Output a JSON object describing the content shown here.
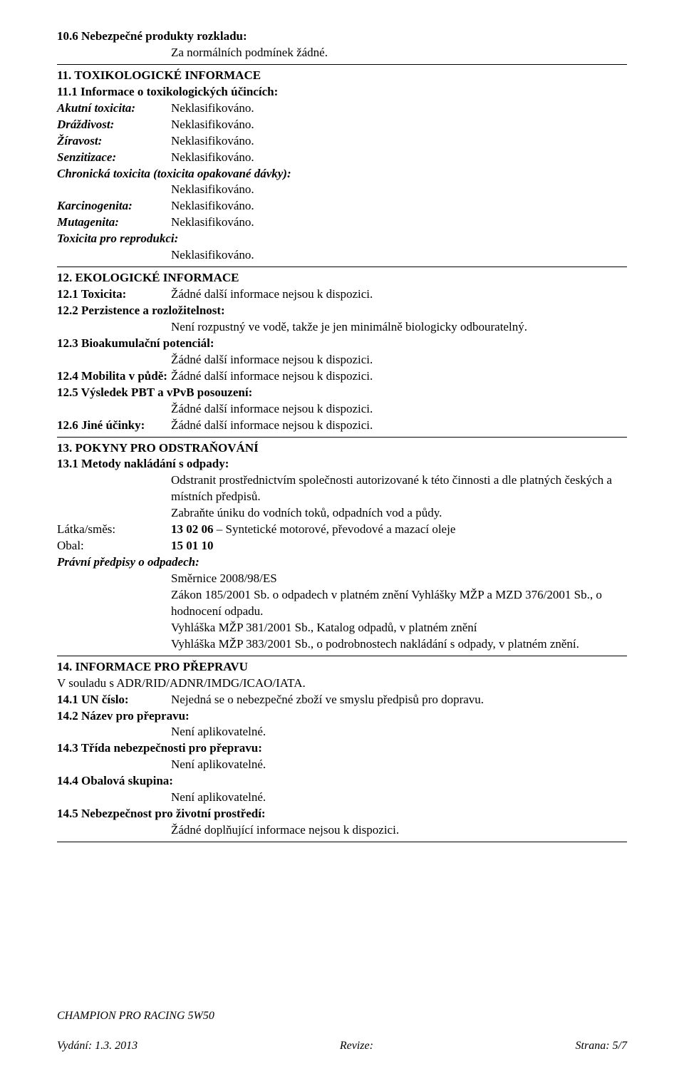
{
  "s10_6_title": "10.6 Nebezpečné produkty rozkladu:",
  "s10_6_text": "Za normálních podmínek žádné.",
  "s11_title": "11. TOXIKOLOGICKÉ INFORMACE",
  "s11_1_title": "11.1 Informace o toxikologických účincích:",
  "akutni_label": "Akutní toxicita:",
  "akutni_val": "Neklasifikováno.",
  "drazdivost_label": "Dráždivost:",
  "drazdivost_val": "Neklasifikováno.",
  "ziravost_label": "Žíravost:",
  "ziravost_val": "Neklasifikováno.",
  "senzitizace_label": "Senzitizace:",
  "senzitizace_val": "Neklasifikováno.",
  "chronic_label": "Chronická toxicita (toxicita opakované dávky):",
  "chronic_val": "Neklasifikováno.",
  "karcinogen_label": "Karcinogenita:",
  "karcinogen_val": "Neklasifikováno.",
  "mutagen_label": "Mutagenita:",
  "mutagen_val": "Neklasifikováno.",
  "toxrepro_label": "Toxicita pro reprodukci:",
  "toxrepro_val": "Neklasifikováno.",
  "s12_title": "12. EKOLOGICKÉ INFORMACE",
  "s12_1_label": "12.1 Toxicita:",
  "s12_1_val": "Žádné další informace nejsou k dispozici.",
  "s12_2_label": "12.2 Perzistence a rozložitelnost:",
  "s12_2_val": "Není rozpustný ve vodě, takže je jen minimálně biologicky odbouratelný.",
  "s12_3_label": "12.3 Bioakumulační potenciál:",
  "s12_3_val": "Žádné další informace nejsou k dispozici.",
  "s12_4_label": "12.4 Mobilita v půdě:",
  "s12_4_val": "Žádné další informace nejsou k dispozici.",
  "s12_5_label": "12.5 Výsledek PBT a vPvB posouzení:",
  "s12_5_val": "Žádné další informace nejsou k dispozici.",
  "s12_6_label": "12.6 Jiné účinky:",
  "s12_6_val": "Žádné další informace nejsou k dispozici.",
  "s13_title": "13. POKYNY PRO ODSTRAŇOVÁNÍ",
  "s13_1_title": "13.1 Metody nakládání s odpady:",
  "s13_1_p1": "Odstranit prostřednictvím společnosti autorizované k této činnosti a dle platných českých a místních předpisů.",
  "s13_1_p2": "Zabraňte úniku do vodních toků, odpadních vod a půdy.",
  "latkasmes_label": "Látka/směs:",
  "latkasmes_code": "13 02 06",
  "latkasmes_text": " – Syntetické motorové, převodové a mazací oleje",
  "obal_label": "Obal:",
  "obal_val": "15 01 10",
  "pravni_label": "Právní předpisy o odpadech:",
  "pravni_1": "Směrnice 2008/98/ES",
  "pravni_2": "Zákon 185/2001 Sb. o odpadech v platném znění Vyhlášky MŽP a MZD 376/2001 Sb., o hodnocení odpadu.",
  "pravni_3": "Vyhláška MŽP 381/2001 Sb., Katalog odpadů, v platném znění",
  "pravni_4": "Vyhláška MŽP 383/2001 Sb., o podrobnostech nakládání s odpady, v platném znění.",
  "s14_title": "14. INFORMACE PRO PŘEPRAVU",
  "s14_intro": "V souladu s ADR/RID/ADNR/IMDG/ICAO/IATA.",
  "s14_1_label": "14.1 UN číslo:",
  "s14_1_val": "Nejedná se o nebezpečné zboží ve smyslu předpisů pro dopravu.",
  "s14_2_label": "14.2 Název pro přepravu:",
  "s14_2_val": "Není aplikovatelné.",
  "s14_3_label": "14.3 Třída nebezpečnosti pro přepravu:",
  "s14_3_val": "Není aplikovatelné.",
  "s14_4_label": "14.4 Obalová skupina:",
  "s14_4_val": "Není aplikovatelné.",
  "s14_5_label": "14.5 Nebezpečnost pro životní prostředí:",
  "s14_5_val": "Žádné doplňující informace nejsou k dispozici.",
  "footer_product": "CHAMPION PRO RACING 5W50",
  "footer_left": "Vydání: 1.3. 2013",
  "footer_center": "Revize:",
  "footer_right": "Strana: 5/7"
}
